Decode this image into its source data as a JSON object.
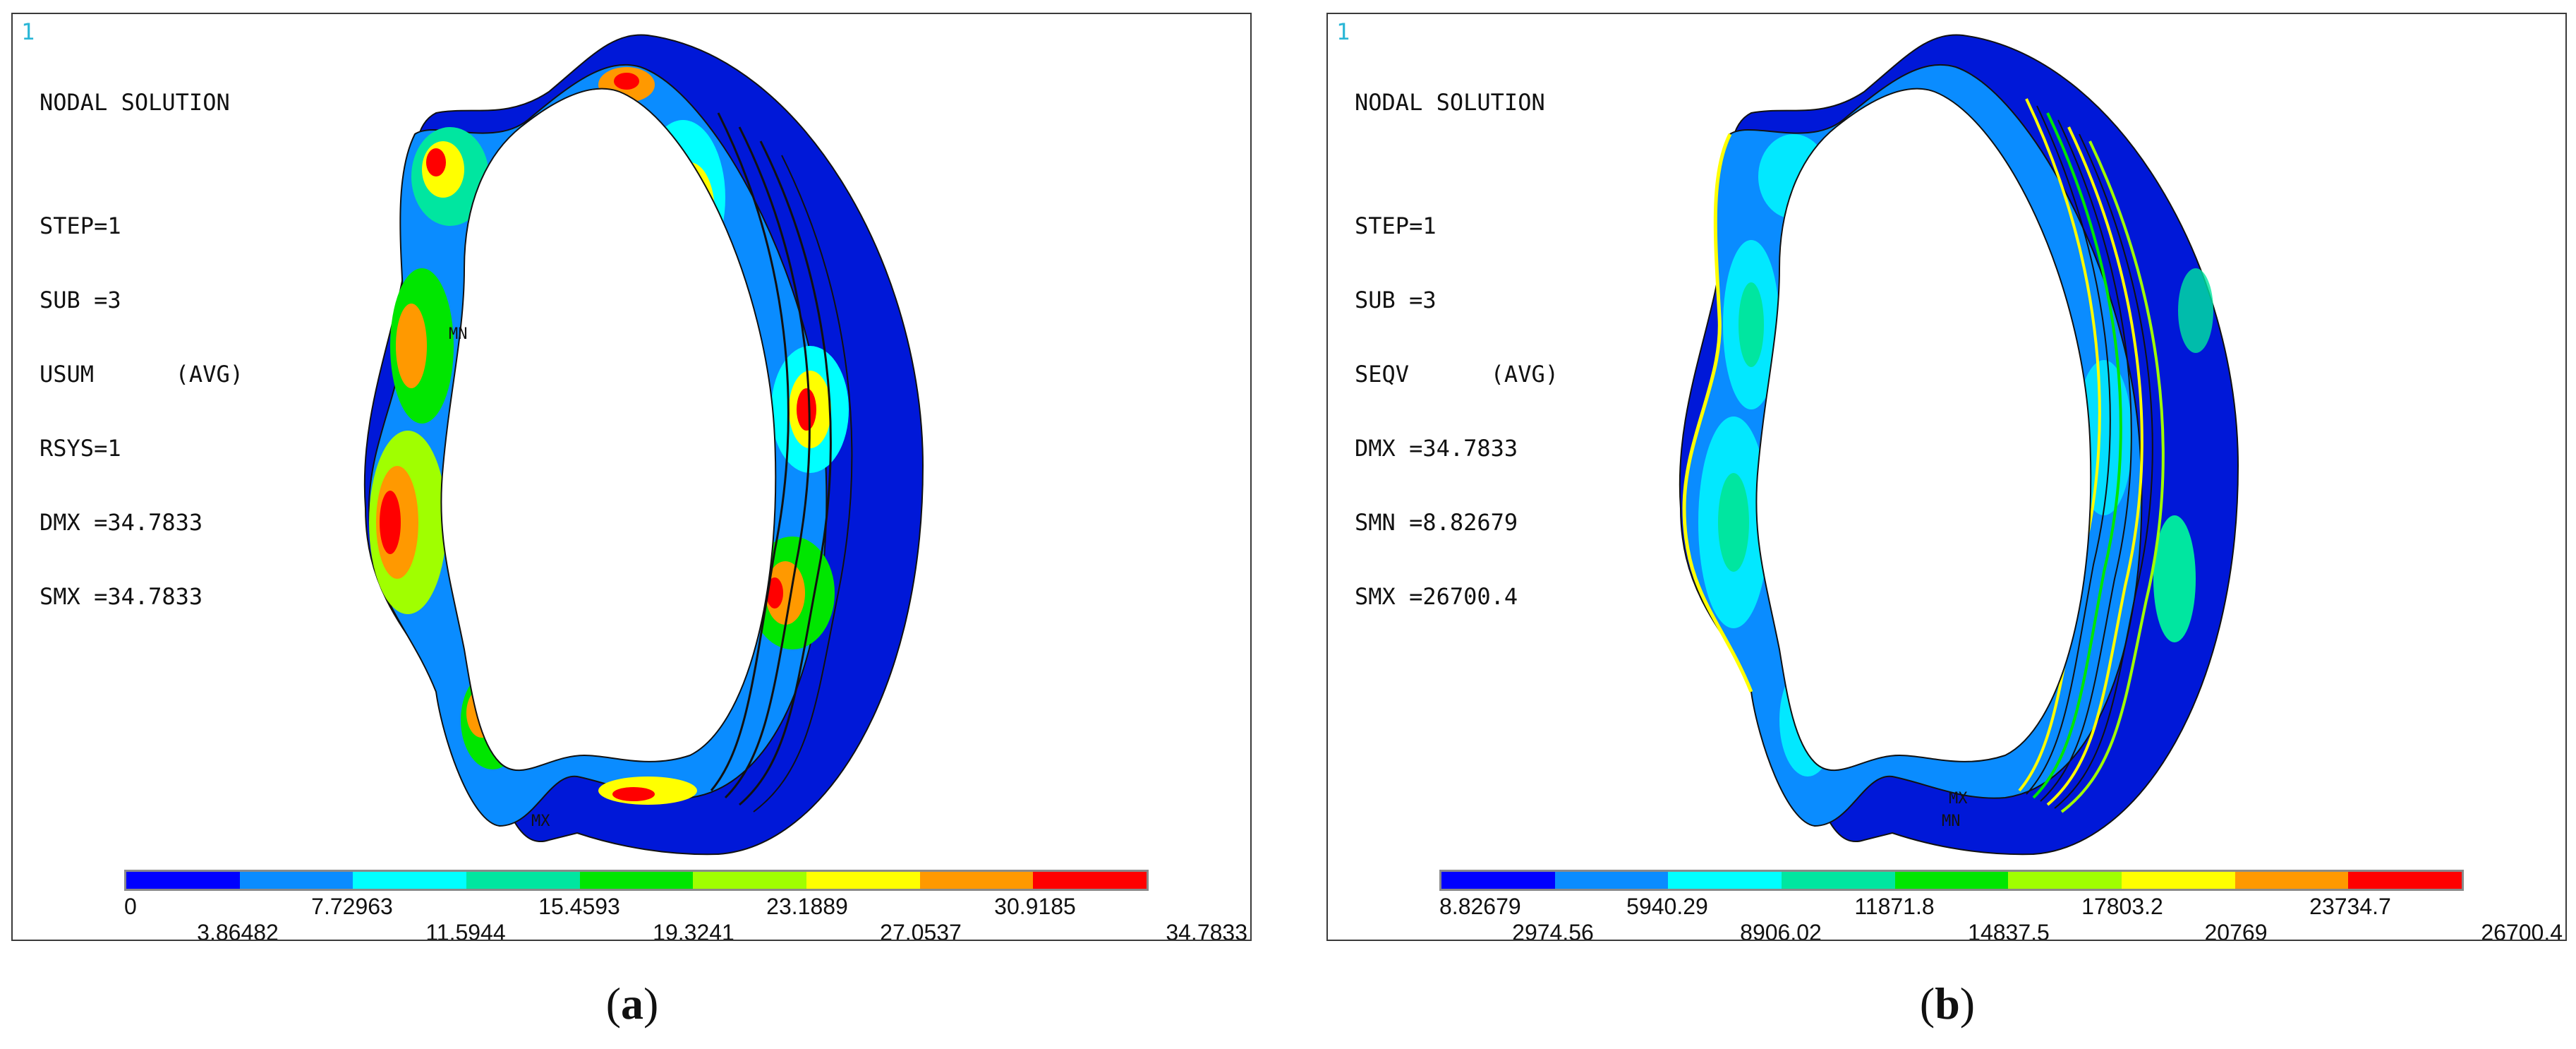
{
  "panels": [
    {
      "window_number": "1",
      "info_lines": [
        "NODAL SOLUTION",
        "",
        "STEP=1",
        "SUB =3",
        "USUM      (AVG)",
        "RSYS=1",
        "DMX =34.7833",
        "SMX =34.7833"
      ],
      "markers": [
        "MN",
        "MX"
      ],
      "legend_upper": [
        "0",
        "7.72963",
        "15.4593",
        "23.1889",
        "30.9185"
      ],
      "legend_lower": [
        "3.86482",
        "11.5944",
        "19.3241",
        "27.0537",
        "34.7833"
      ],
      "caption_letter": "a"
    },
    {
      "window_number": "1",
      "info_lines": [
        "NODAL SOLUTION",
        "",
        "STEP=1",
        "SUB =3",
        "SEQV      (AVG)",
        "DMX =34.7833",
        "SMN =8.82679",
        "SMX =26700.4"
      ],
      "markers": [
        "MN",
        "MX"
      ],
      "legend_upper": [
        "8.82679",
        "5940.29",
        "11871.8",
        "17803.2",
        "23734.7"
      ],
      "legend_lower": [
        "2974.56",
        "8906.02",
        "14837.5",
        "20769",
        "26700.4"
      ],
      "caption_letter": "b"
    }
  ],
  "legend_colors": [
    "#0000ff",
    "#0a8cff",
    "#00ffff",
    "#00e6a0",
    "#00e600",
    "#a0ff00",
    "#ffff00",
    "#ff9900",
    "#ff0000"
  ]
}
